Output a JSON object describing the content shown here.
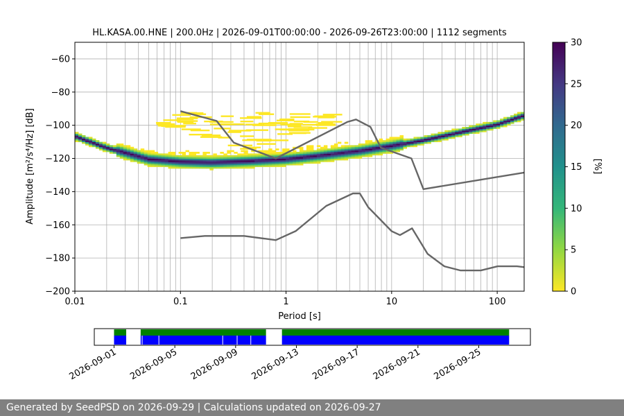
{
  "chart_data": [
    {
      "type": "heatmap",
      "title": "HL.KASA.00.HNE | 200.0Hz | 2026-09-01T00:00:00 - 2026-09-26T23:00:00 | 1112 segments",
      "xlabel": "Period [s]",
      "ylabel": "Amplitude [m²/s⁴/Hz] [dB]",
      "x_scale": "log",
      "xlim": [
        0.01,
        180
      ],
      "ylim": [
        -200,
        -50
      ],
      "x_ticks": [
        {
          "value": 0.01,
          "label": "0.01"
        },
        {
          "value": 0.1,
          "label": "0.1"
        },
        {
          "value": 1,
          "label": "1"
        },
        {
          "value": 10,
          "label": "10"
        },
        {
          "value": 100,
          "label": "100"
        }
      ],
      "y_ticks": [
        {
          "value": -60,
          "label": "−60"
        },
        {
          "value": -80,
          "label": "−80"
        },
        {
          "value": -100,
          "label": "−100"
        },
        {
          "value": -120,
          "label": "−120"
        },
        {
          "value": -140,
          "label": "−140"
        },
        {
          "value": -160,
          "label": "−160"
        },
        {
          "value": -180,
          "label": "−180"
        },
        {
          "value": -200,
          "label": "−200"
        }
      ],
      "grid": true,
      "colorbar": {
        "label": "[%]",
        "range": [
          0,
          30
        ],
        "ticks": [
          {
            "value": 0,
            "label": "0"
          },
          {
            "value": 5,
            "label": "5"
          },
          {
            "value": 10,
            "label": "10"
          },
          {
            "value": 15,
            "label": "15"
          },
          {
            "value": 20,
            "label": "20"
          },
          {
            "value": 25,
            "label": "25"
          },
          {
            "value": 30,
            "label": "30"
          }
        ],
        "colormap": "viridis_r"
      },
      "series": [
        {
          "kind": "line",
          "role": "upper-noise-model",
          "color": "#666666",
          "x": [
            0.1,
            0.22,
            0.32,
            0.8,
            3.8,
            4.6,
            6.3,
            7.9,
            15.4,
            20,
            180
          ],
          "y": [
            -91.5,
            -97.4,
            -110.5,
            -120,
            -98,
            -96.5,
            -101,
            -113.5,
            -120,
            -138.5,
            -128.5
          ]
        },
        {
          "kind": "line",
          "role": "lower-noise-model",
          "color": "#666666",
          "x": [
            0.1,
            0.17,
            0.4,
            0.8,
            1.24,
            2.4,
            4.3,
            5,
            6,
            10,
            12,
            15.6,
            21.9,
            31.6,
            45,
            70,
            101,
            154,
            180
          ],
          "y": [
            -168,
            -166.7,
            -166.7,
            -169.2,
            -163.7,
            -148.6,
            -141.1,
            -141.1,
            -149.4,
            -163.8,
            -166.2,
            -162.1,
            -177.5,
            -185,
            -187.5,
            -187.5,
            -185,
            -185,
            -185.5
          ]
        },
        {
          "kind": "density-band",
          "name": "mode",
          "x": [
            0.01,
            0.02,
            0.05,
            0.1,
            0.2,
            0.5,
            1,
            2,
            5,
            10,
            20,
            50,
            100,
            180
          ],
          "y": [
            -107,
            -114,
            -121,
            -122.5,
            -123,
            -122,
            -121,
            -119,
            -116,
            -113,
            -109.5,
            -104,
            -100,
            -94.5
          ],
          "percent": 30
        }
      ]
    },
    {
      "type": "timeline",
      "x_ticks": [
        "2026-09-01",
        "2026-09-05",
        "2026-09-09",
        "2026-09-13",
        "2026-09-17",
        "2026-09-21",
        "2026-09-25"
      ],
      "x_range_days": [
        -1.3,
        27.4
      ],
      "tick_days": [
        0,
        4,
        8,
        12,
        16,
        20,
        24
      ],
      "rows": [
        {
          "role": "data-available",
          "color": "#008000",
          "intervals": [
            [
              0,
              0.8
            ],
            [
              1.75,
              10
            ],
            [
              11.05,
              26
            ]
          ]
        },
        {
          "role": "psd-computed",
          "color": "#0000ff",
          "intervals": [
            [
              0,
              0.8
            ],
            [
              1.75,
              10
            ],
            [
              11.05,
              26
            ]
          ],
          "gaps": [
            1.85,
            2.95,
            7.15,
            8.1,
            9
          ]
        }
      ]
    }
  ],
  "footer": {
    "text": "Generated by SeedPSD on 2026-09-29 | Calculations updated on 2026-09-27"
  }
}
